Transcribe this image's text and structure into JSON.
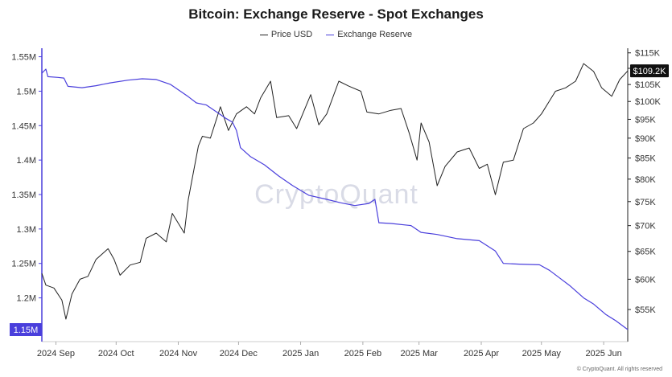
{
  "chart_data": {
    "type": "line",
    "title": "Bitcoin: Exchange Reserve - Spot Exchanges",
    "legend": [
      {
        "name": "Price USD",
        "color": "#222222"
      },
      {
        "name": "Exchange Reserve",
        "color": "#4a3fdc"
      }
    ],
    "x_ticks": [
      "2024 Sep",
      "2024 Oct",
      "2024 Nov",
      "2024 Dec",
      "2025 Jan",
      "2025 Feb",
      "2025 Mar",
      "2025 Apr",
      "2025 May",
      "2025 Jun"
    ],
    "x_range": [
      "2024-08-25",
      "2025-06-13"
    ],
    "left_axis": {
      "ticks": [
        "1.55M",
        "1.5M",
        "1.45M",
        "1.4M",
        "1.35M",
        "1.3M",
        "1.25M",
        "1.2M"
      ],
      "range": [
        1140000,
        1560000
      ],
      "current_label": "1.15M"
    },
    "right_axis": {
      "ticks": [
        "$115K",
        "$110K",
        "$105K",
        "$100K",
        "$95K",
        "$90K",
        "$85K",
        "$80K",
        "$75K",
        "$70K",
        "$65K",
        "$60K",
        "$55K"
      ],
      "scale": "log",
      "range": [
        50500,
        116000
      ],
      "current_label": "$109.2K"
    },
    "series": [
      {
        "name": "Exchange Reserve",
        "axis": "left",
        "color": "#4a3fdc",
        "points": [
          [
            "2024-08-25",
            1526000
          ],
          [
            "2024-08-27",
            1532000
          ],
          [
            "2024-08-28",
            1521000
          ],
          [
            "2024-09-02",
            1520000
          ],
          [
            "2024-09-05",
            1519000
          ],
          [
            "2024-09-07",
            1507000
          ],
          [
            "2024-09-14",
            1505000
          ],
          [
            "2024-09-21",
            1508000
          ],
          [
            "2024-09-28",
            1512000
          ],
          [
            "2024-10-07",
            1516000
          ],
          [
            "2024-10-14",
            1518000
          ],
          [
            "2024-10-21",
            1517000
          ],
          [
            "2024-10-28",
            1510000
          ],
          [
            "2024-11-02",
            1500000
          ],
          [
            "2024-11-06",
            1492000
          ],
          [
            "2024-11-10",
            1483000
          ],
          [
            "2024-11-15",
            1480000
          ],
          [
            "2024-11-20",
            1470000
          ],
          [
            "2024-11-25",
            1460000
          ],
          [
            "2024-11-28",
            1455000
          ],
          [
            "2024-11-30",
            1443000
          ],
          [
            "2024-12-02",
            1418000
          ],
          [
            "2024-12-07",
            1405000
          ],
          [
            "2024-12-14",
            1393000
          ],
          [
            "2024-12-21",
            1377000
          ],
          [
            "2024-12-28",
            1363000
          ],
          [
            "2025-01-05",
            1349000
          ],
          [
            "2025-01-14",
            1343000
          ],
          [
            "2025-01-21",
            1338000
          ],
          [
            "2025-01-28",
            1334000
          ],
          [
            "2025-02-04",
            1337000
          ],
          [
            "2025-02-07",
            1343000
          ],
          [
            "2025-02-09",
            1309000
          ],
          [
            "2025-02-15",
            1308000
          ],
          [
            "2025-02-25",
            1305000
          ],
          [
            "2025-03-02",
            1295000
          ],
          [
            "2025-03-10",
            1292000
          ],
          [
            "2025-03-20",
            1286000
          ],
          [
            "2025-03-31",
            1283000
          ],
          [
            "2025-04-08",
            1268000
          ],
          [
            "2025-04-12",
            1250000
          ],
          [
            "2025-04-20",
            1249000
          ],
          [
            "2025-04-30",
            1248000
          ],
          [
            "2025-05-05",
            1240000
          ],
          [
            "2025-05-10",
            1229000
          ],
          [
            "2025-05-15",
            1218000
          ],
          [
            "2025-05-22",
            1200000
          ],
          [
            "2025-05-27",
            1191000
          ],
          [
            "2025-06-02",
            1176000
          ],
          [
            "2025-06-07",
            1167000
          ],
          [
            "2025-06-13",
            1154000
          ]
        ]
      },
      {
        "name": "Price USD",
        "axis": "right",
        "color": "#222222",
        "points": [
          [
            "2024-08-25",
            61000
          ],
          [
            "2024-08-27",
            59000
          ],
          [
            "2024-08-31",
            58500
          ],
          [
            "2024-09-04",
            56500
          ],
          [
            "2024-09-06",
            53500
          ],
          [
            "2024-09-09",
            57500
          ],
          [
            "2024-09-13",
            60000
          ],
          [
            "2024-09-17",
            60500
          ],
          [
            "2024-09-21",
            63500
          ],
          [
            "2024-09-27",
            65500
          ],
          [
            "2024-09-30",
            63500
          ],
          [
            "2024-10-03",
            60700
          ],
          [
            "2024-10-08",
            62500
          ],
          [
            "2024-10-13",
            63000
          ],
          [
            "2024-10-16",
            67500
          ],
          [
            "2024-10-21",
            68500
          ],
          [
            "2024-10-26",
            66800
          ],
          [
            "2024-10-29",
            72500
          ],
          [
            "2024-11-04",
            68500
          ],
          [
            "2024-11-06",
            75500
          ],
          [
            "2024-11-11",
            88000
          ],
          [
            "2024-11-13",
            90500
          ],
          [
            "2024-11-17",
            90000
          ],
          [
            "2024-11-22",
            98500
          ],
          [
            "2024-11-26",
            92000
          ],
          [
            "2024-11-30",
            96500
          ],
          [
            "2024-12-05",
            98500
          ],
          [
            "2024-12-09",
            96500
          ],
          [
            "2024-12-12",
            101000
          ],
          [
            "2024-12-17",
            106000
          ],
          [
            "2024-12-20",
            95500
          ],
          [
            "2024-12-26",
            96000
          ],
          [
            "2024-12-30",
            92500
          ],
          [
            "2025-01-06",
            102000
          ],
          [
            "2025-01-10",
            93500
          ],
          [
            "2025-01-14",
            96500
          ],
          [
            "2025-01-20",
            106000
          ],
          [
            "2025-01-25",
            104500
          ],
          [
            "2025-01-31",
            103000
          ],
          [
            "2025-02-03",
            97000
          ],
          [
            "2025-02-09",
            96500
          ],
          [
            "2025-02-15",
            97500
          ],
          [
            "2025-02-20",
            98000
          ],
          [
            "2025-02-24",
            91500
          ],
          [
            "2025-02-28",
            84500
          ],
          [
            "2025-03-02",
            94000
          ],
          [
            "2025-03-06",
            89000
          ],
          [
            "2025-03-10",
            78500
          ],
          [
            "2025-03-14",
            83000
          ],
          [
            "2025-03-20",
            86500
          ],
          [
            "2025-03-26",
            87500
          ],
          [
            "2025-03-31",
            82500
          ],
          [
            "2025-04-04",
            83500
          ],
          [
            "2025-04-08",
            76500
          ],
          [
            "2025-04-12",
            84000
          ],
          [
            "2025-04-17",
            84500
          ],
          [
            "2025-04-22",
            92500
          ],
          [
            "2025-04-27",
            94000
          ],
          [
            "2025-05-01",
            96500
          ],
          [
            "2025-05-08",
            103000
          ],
          [
            "2025-05-13",
            104000
          ],
          [
            "2025-05-18",
            106000
          ],
          [
            "2025-05-22",
            111500
          ],
          [
            "2025-05-27",
            109000
          ],
          [
            "2025-05-31",
            104000
          ],
          [
            "2025-06-05",
            101500
          ],
          [
            "2025-06-09",
            106500
          ],
          [
            "2025-06-13",
            109200
          ]
        ]
      }
    ],
    "watermark": "CryptoQuant",
    "credit": "© CryptoQuant. All rights reserved"
  }
}
